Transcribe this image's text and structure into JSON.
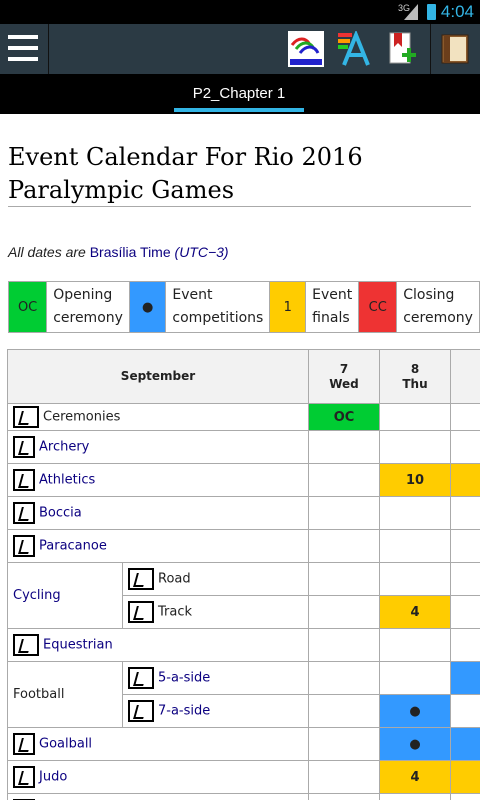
{
  "status": {
    "network": "3G",
    "time": "4:04"
  },
  "toolbar": {
    "icons": [
      "menu-icon",
      "paralympic-logo-icon",
      "font-size-icon",
      "add-bookmark-icon",
      "chapters-book-icon"
    ]
  },
  "tab": {
    "label": "P2_Chapter 1"
  },
  "page": {
    "title": "Event Calendar For Rio 2016 Paralympic Games",
    "tz_prefix": "All dates are ",
    "tz_link": "Brasília Time",
    "tz_suffix": "(UTC−3)"
  },
  "legend": [
    {
      "code": "OC",
      "label_line1": "Opening",
      "label_line2": "ceremony",
      "color": "#00cc33"
    },
    {
      "code": "●",
      "label_line1": "Event",
      "label_line2": "competitions",
      "color": "#3399ff"
    },
    {
      "code": "1",
      "label_line1": "Event",
      "label_line2": "finals",
      "color": "#ffcc00"
    },
    {
      "code": "CC",
      "label_line1": "Closing",
      "label_line2": "ceremony",
      "color": "#ee3333"
    }
  ],
  "calendar": {
    "month": "September",
    "days": [
      {
        "num": "7",
        "name": "Wed"
      },
      {
        "num": "8",
        "name": "Thu"
      }
    ],
    "rows": {
      "ceremonies": {
        "label": "Ceremonies",
        "d7": "OC",
        "d8": ""
      },
      "archery": {
        "label": "Archery"
      },
      "athletics": {
        "label": "Athletics",
        "d8": "10"
      },
      "boccia": {
        "label": "Boccia"
      },
      "paracanoe": {
        "label": "Paracanoe"
      },
      "cycling": {
        "label": "Cycling",
        "road": "Road",
        "track": "Track",
        "track_d8": "4"
      },
      "equestrian": {
        "label": "Equestrian"
      },
      "football": {
        "label": "Football",
        "five": "5-a-side",
        "seven": "7-a-side",
        "seven_d8": "●"
      },
      "goalball": {
        "label": "Goalball",
        "d8": "●"
      },
      "judo": {
        "label": "Judo",
        "d8": "4"
      }
    }
  }
}
